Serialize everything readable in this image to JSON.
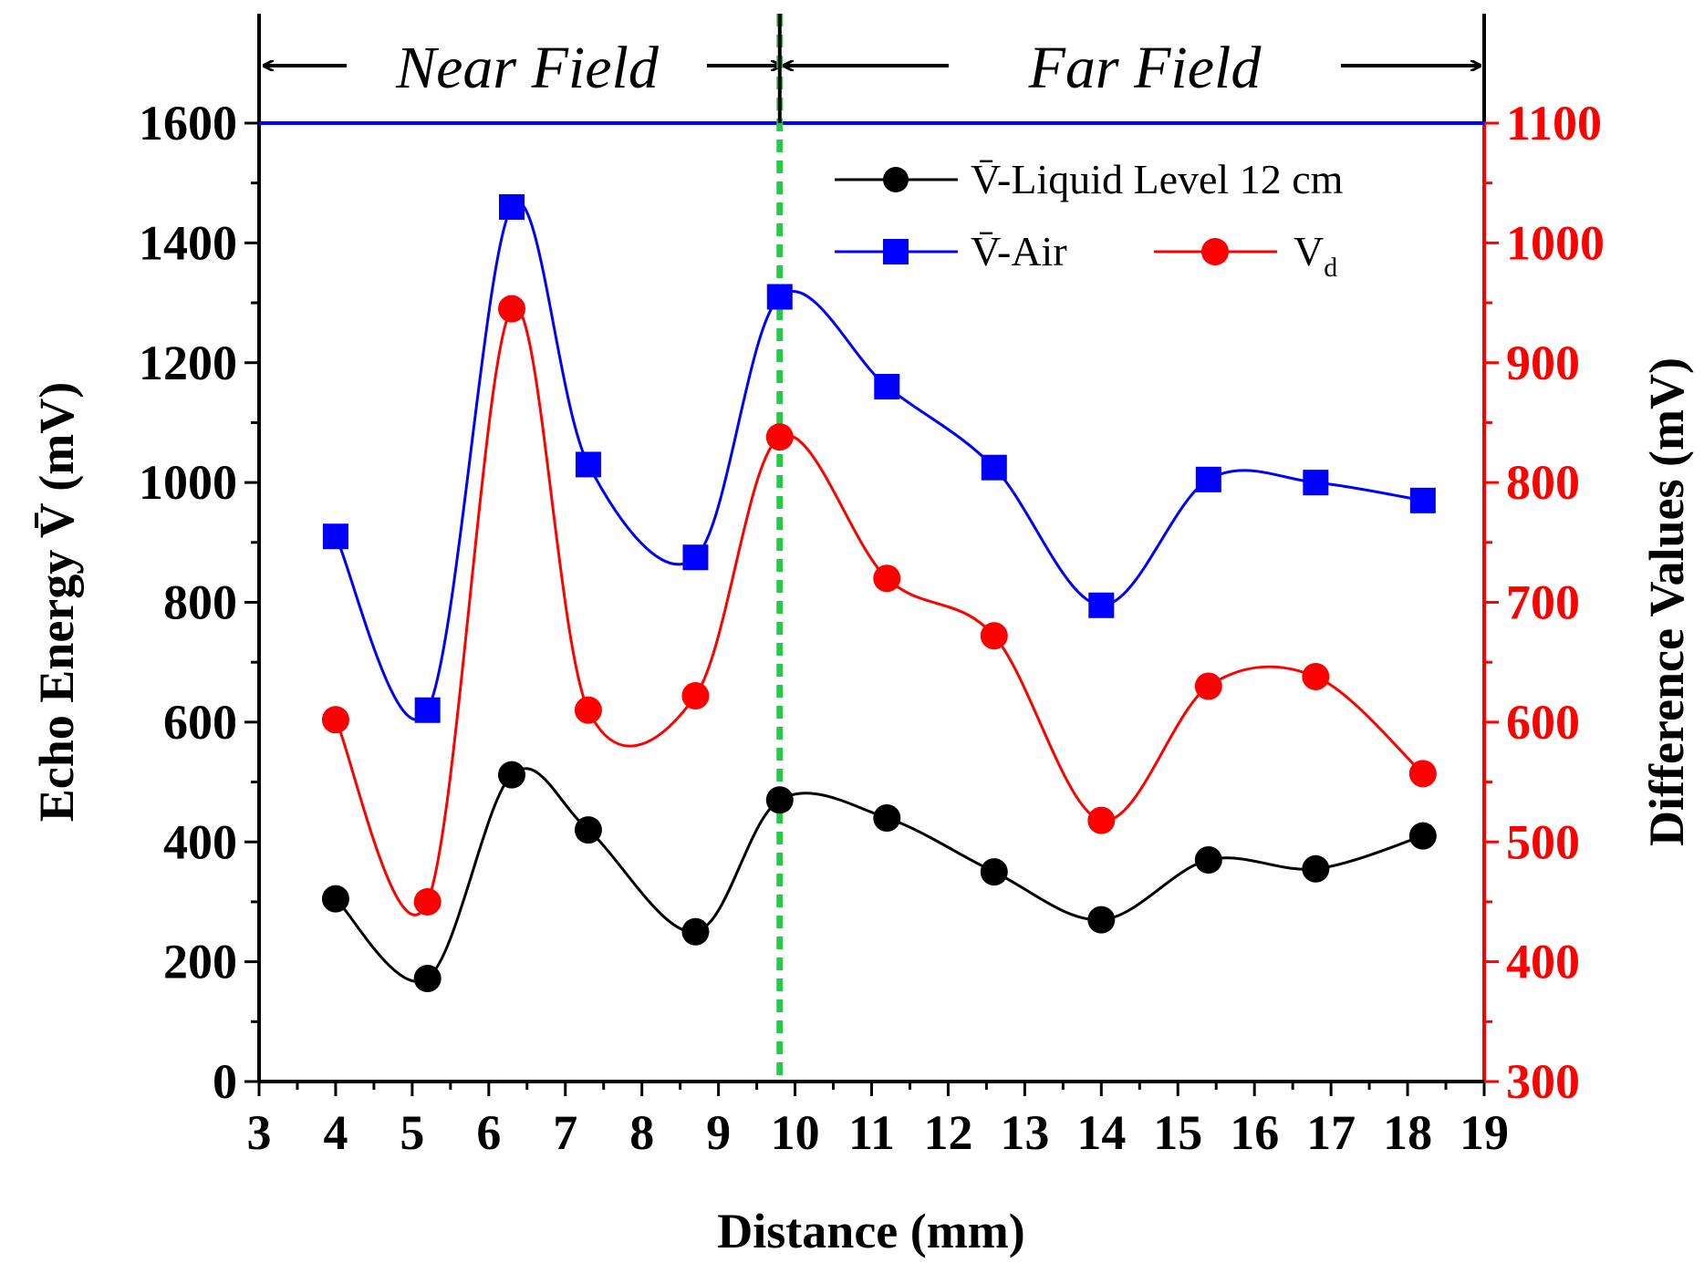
{
  "chart_data": {
    "type": "line",
    "title": "",
    "xlabel": "Distance (mm)",
    "ylabel_left": "Echo Energy V̄ (mV)",
    "ylabel_right": "Difference Values (mV)",
    "xlim": [
      3,
      19
    ],
    "ylim_left": [
      0,
      1600
    ],
    "ylim_right": [
      300,
      1100
    ],
    "xticks": [
      "3",
      "4",
      "5",
      "6",
      "7",
      "8",
      "9",
      "10",
      "11",
      "12",
      "13",
      "14",
      "15",
      "16",
      "17",
      "18",
      "19"
    ],
    "yticks_left": [
      "0",
      "200",
      "400",
      "600",
      "800",
      "1000",
      "1200",
      "1400",
      "1600"
    ],
    "yticks_right": [
      "300",
      "400",
      "500",
      "600",
      "700",
      "800",
      "900",
      "1000",
      "1100"
    ],
    "grid": false,
    "legend_position": "top-right",
    "regions": {
      "near_label": "Near Field",
      "far_label": "Far Field",
      "boundary_x": 9.8,
      "boundary_color": "#22cc44"
    },
    "series": [
      {
        "name": "V̄-Liquid Level 12 cm",
        "axis": "left",
        "color": "#000000",
        "marker": "circle",
        "x": [
          4.0,
          5.2,
          6.3,
          7.3,
          8.7,
          9.8,
          11.2,
          12.6,
          14.0,
          15.4,
          16.8,
          18.2
        ],
        "values": [
          305,
          172,
          512,
          420,
          250,
          470,
          440,
          350,
          270,
          370,
          355,
          410
        ]
      },
      {
        "name": "V̄-Air",
        "axis": "left",
        "color": "#0000ff",
        "marker": "square",
        "x": [
          4.0,
          5.2,
          6.3,
          7.3,
          8.7,
          9.8,
          11.2,
          12.6,
          14.0,
          15.4,
          16.8,
          18.2
        ],
        "values": [
          910,
          620,
          1460,
          1030,
          875,
          1310,
          1160,
          1025,
          795,
          1005,
          1000,
          970
        ]
      },
      {
        "name": "Vd",
        "axis": "right",
        "color": "#ff0000",
        "marker": "circle",
        "x": [
          4.0,
          5.2,
          6.3,
          7.3,
          8.7,
          9.8,
          11.2,
          12.6,
          14.0,
          15.4,
          16.8,
          18.2
        ],
        "values": [
          602,
          450,
          945,
          610,
          622,
          838,
          720,
          672,
          518,
          630,
          638,
          557
        ]
      }
    ],
    "legend": [
      {
        "series": 0,
        "label_main": "V̄-Liquid Level 12 cm",
        "label_sub": ""
      },
      {
        "series": 1,
        "label_main": "V̄-Air",
        "label_sub": ""
      },
      {
        "series": 2,
        "label_main": "V",
        "label_sub": "d"
      }
    ]
  }
}
